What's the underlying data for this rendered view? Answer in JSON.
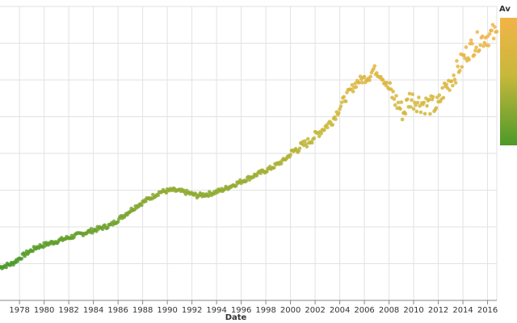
{
  "chart_data": {
    "type": "scatter",
    "xlabel": "Date",
    "x_ticks": [
      "1978",
      "1980",
      "1982",
      "1984",
      "1986",
      "1988",
      "1990",
      "1992",
      "1994",
      "1996",
      "1998",
      "2000",
      "2002",
      "2004",
      "2006",
      "2008",
      "2010",
      "2012",
      "2014",
      "2016"
    ],
    "xlim": [
      "1976-06",
      "2016-10"
    ],
    "ylim": [
      0,
      8
    ],
    "grid": true,
    "legend": {
      "title": "Av",
      "placement": "top-right",
      "type": "gradient"
    },
    "colors": {
      "low": "#4c9a2a",
      "mid": "#c8b83a",
      "high": "#f2b447"
    },
    "control_points": [
      [
        "1976-06",
        0.9
      ],
      [
        "1977-06",
        1.0
      ],
      [
        "1978-06",
        1.25
      ],
      [
        "1979-06",
        1.45
      ],
      [
        "1980-06",
        1.55
      ],
      [
        "1981-06",
        1.65
      ],
      [
        "1982-06",
        1.75
      ],
      [
        "1983-06",
        1.85
      ],
      [
        "1984-06",
        1.95
      ],
      [
        "1985-06",
        2.05
      ],
      [
        "1986-06",
        2.3
      ],
      [
        "1987-06",
        2.55
      ],
      [
        "1988-06",
        2.75
      ],
      [
        "1989-06",
        2.95
      ],
      [
        "1990-06",
        3.0
      ],
      [
        "1991-06",
        2.95
      ],
      [
        "1992-06",
        2.85
      ],
      [
        "1993-06",
        2.9
      ],
      [
        "1994-06",
        3.0
      ],
      [
        "1995-06",
        3.15
      ],
      [
        "1996-06",
        3.3
      ],
      [
        "1997-06",
        3.45
      ],
      [
        "1998-06",
        3.6
      ],
      [
        "1999-06",
        3.8
      ],
      [
        "2000-06",
        4.1
      ],
      [
        "2001-06",
        4.3
      ],
      [
        "2002-06",
        4.6
      ],
      [
        "2003-06",
        4.9
      ],
      [
        "2004-06",
        5.5
      ],
      [
        "2005-06",
        5.95
      ],
      [
        "2006-06",
        6.1
      ],
      [
        "2006-10",
        6.3
      ],
      [
        "2007-06",
        6.1
      ],
      [
        "2008-06",
        5.5
      ],
      [
        "2009-03",
        5.1
      ],
      [
        "2009-09",
        5.5
      ],
      [
        "2010-06",
        5.4
      ],
      [
        "2011-06",
        5.3
      ],
      [
        "2012-01",
        5.3
      ],
      [
        "2012-06",
        5.7
      ],
      [
        "2013-06",
        6.2
      ],
      [
        "2014-06",
        6.8
      ],
      [
        "2015-06",
        7.1
      ],
      [
        "2016-06",
        7.25
      ],
      [
        "2016-10",
        7.2
      ]
    ]
  }
}
